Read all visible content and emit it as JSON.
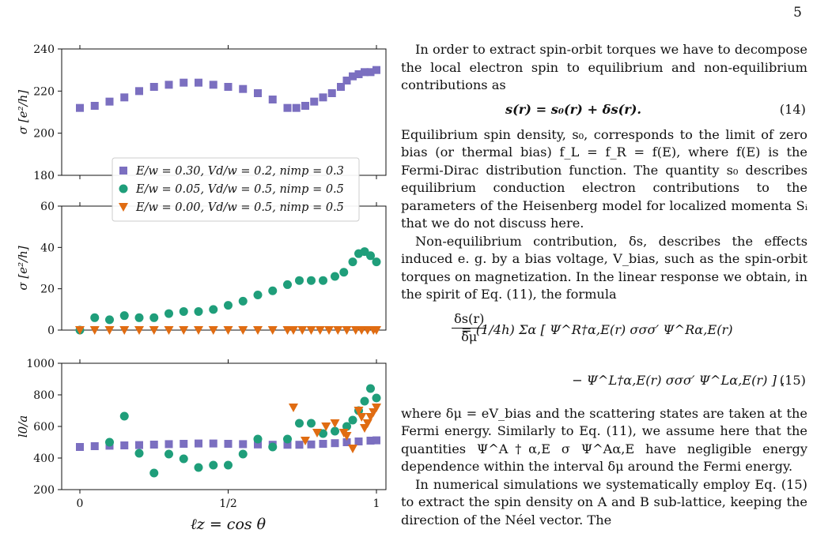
{
  "page_number": "5",
  "colors": {
    "purple": "#7b6fc0",
    "green": "#1f9e7a",
    "orange": "#e06c12"
  },
  "figure": {
    "xlabel": "ℓz = cos θ",
    "xticks": [
      "0",
      "1/2",
      "1"
    ],
    "legend": [
      "E/w = 0.30, Vd/w = 0.2, nimp = 0.3",
      "E/w = 0.05, Vd/w = 0.5, nimp = 0.5",
      "E/w = 0.00, Vd/w = 0.5, nimp = 0.5"
    ],
    "legend_placement": "upper-center",
    "markers": [
      "square",
      "circle",
      "triangle-down"
    ]
  },
  "chart_data": [
    {
      "type": "scatter",
      "ylabel": "σ [e²/h]",
      "ylim": [
        180,
        240
      ],
      "yticks": [
        "180",
        "200",
        "220",
        "240"
      ],
      "series": [
        {
          "marker": "square",
          "color": "purple",
          "x": [
            0,
            0.05,
            0.1,
            0.15,
            0.2,
            0.25,
            0.3,
            0.35,
            0.4,
            0.45,
            0.5,
            0.55,
            0.6,
            0.65,
            0.7,
            0.73,
            0.76,
            0.79,
            0.82,
            0.85,
            0.88,
            0.9,
            0.92,
            0.94,
            0.96,
            0.98,
            1.0
          ],
          "y": [
            212,
            213,
            215,
            217,
            220,
            222,
            223,
            224,
            224,
            223,
            222,
            221,
            219,
            216,
            212,
            212,
            213,
            215,
            217,
            219,
            222,
            225,
            227,
            228,
            229,
            229,
            230
          ]
        }
      ]
    },
    {
      "type": "scatter",
      "ylabel": "σ [e²/h]",
      "ylim": [
        0,
        60
      ],
      "yticks": [
        "0",
        "20",
        "40",
        "60"
      ],
      "series": [
        {
          "marker": "circle",
          "color": "green",
          "x": [
            0,
            0.05,
            0.1,
            0.15,
            0.2,
            0.25,
            0.3,
            0.35,
            0.4,
            0.45,
            0.5,
            0.55,
            0.6,
            0.65,
            0.7,
            0.74,
            0.78,
            0.82,
            0.86,
            0.89,
            0.92,
            0.94,
            0.96,
            0.98,
            1.0
          ],
          "y": [
            0,
            6,
            5,
            7,
            6,
            6,
            8,
            9,
            9,
            10,
            12,
            14,
            17,
            19,
            22,
            24,
            24,
            24,
            26,
            28,
            33,
            37,
            38,
            36,
            33
          ]
        },
        {
          "marker": "triangle-down",
          "color": "orange",
          "x": [
            0,
            0.05,
            0.1,
            0.15,
            0.2,
            0.25,
            0.3,
            0.35,
            0.4,
            0.45,
            0.5,
            0.55,
            0.6,
            0.65,
            0.7,
            0.72,
            0.75,
            0.78,
            0.81,
            0.84,
            0.87,
            0.9,
            0.93,
            0.95,
            0.97,
            0.99,
            1.0
          ],
          "y": [
            0,
            0,
            0,
            0,
            0,
            0,
            0,
            0,
            0,
            0,
            0,
            0,
            0,
            0,
            0,
            0,
            0,
            0,
            0,
            0,
            0,
            0,
            0,
            0,
            0,
            0,
            0
          ]
        }
      ]
    },
    {
      "type": "scatter",
      "ylabel": "l0/a",
      "ylim": [
        200,
        1000
      ],
      "yticks": [
        "200",
        "400",
        "600",
        "800",
        "1000"
      ],
      "series": [
        {
          "marker": "square",
          "color": "purple",
          "x": [
            0,
            0.05,
            0.1,
            0.15,
            0.2,
            0.25,
            0.3,
            0.35,
            0.4,
            0.45,
            0.5,
            0.55,
            0.6,
            0.65,
            0.7,
            0.74,
            0.78,
            0.82,
            0.86,
            0.9,
            0.94,
            0.98,
            1.0
          ],
          "y": [
            470,
            475,
            478,
            480,
            482,
            485,
            488,
            490,
            492,
            492,
            490,
            488,
            486,
            484,
            484,
            484,
            486,
            490,
            494,
            500,
            505,
            510,
            512
          ]
        },
        {
          "marker": "circle",
          "color": "green",
          "x": [
            0.1,
            0.15,
            0.2,
            0.25,
            0.3,
            0.35,
            0.4,
            0.45,
            0.5,
            0.55,
            0.6,
            0.65,
            0.7,
            0.74,
            0.78,
            0.82,
            0.86,
            0.9,
            0.92,
            0.94,
            0.96,
            0.98,
            1.0
          ],
          "y": [
            500,
            665,
            430,
            305,
            425,
            395,
            340,
            355,
            355,
            425,
            520,
            470,
            520,
            620,
            620,
            555,
            570,
            600,
            640,
            700,
            760,
            840,
            780
          ]
        },
        {
          "marker": "triangle-down",
          "color": "orange",
          "x": [
            0.72,
            0.76,
            0.8,
            0.83,
            0.86,
            0.89,
            0.9,
            0.92,
            0.94,
            0.95,
            0.96,
            0.97,
            0.98,
            0.99,
            1.0
          ],
          "y": [
            720,
            510,
            560,
            600,
            620,
            560,
            540,
            460,
            700,
            660,
            590,
            620,
            660,
            690,
            720
          ]
        }
      ]
    }
  ],
  "text": {
    "p1": "In order to extract spin-orbit torques we have to decompose the local electron spin to equilibrium and non-equilibrium contributions as",
    "eq14": "s(r) = s₀(r) + δs(r).",
    "eq14_number": "(14)",
    "p2": "Equilibrium spin density, s₀, corresponds to the limit of zero bias (or thermal bias) f_L = f_R = f(E), where f(E) is the Fermi-Dirac distribution function. The quantity s₀ describes equilibrium conduction electron contributions to the parameters of the Heisenberg model for localized momenta Sᵢ that we do not discuss here.",
    "p3": "Non-equilibrium contribution, δs, describes the effects induced e. g. by a bias voltage, V_bias, such as the spin-orbit torques on magnetization. In the linear response we obtain, in the spirit of Eq. (11), the formula",
    "eq15_lhs_num": "δs(r)",
    "eq15_lhs_den": "δμ",
    "eq15_line1": "= (1/4h) Σα [ Ψ^R†α,E(r) σσσ′ Ψ^Rα,E(r)",
    "eq15_line2": "− Ψ^L†α,E(r) σσσ′ Ψ^Lα,E(r) ] ,",
    "eq15_number": "(15)",
    "p4": "where δμ = eV_bias and the scattering states are taken at the Fermi energy. Similarly to Eq. (11), we assume here that the quantities Ψ^A†α,E σ Ψ^Aα,E have negligible energy dependence within the interval δμ around the Fermi energy.",
    "p5": "In numerical simulations we systematically employ Eq. (15) to extract the spin density on A and B sub-lattice, keeping the direction of the Néel vector. The"
  }
}
